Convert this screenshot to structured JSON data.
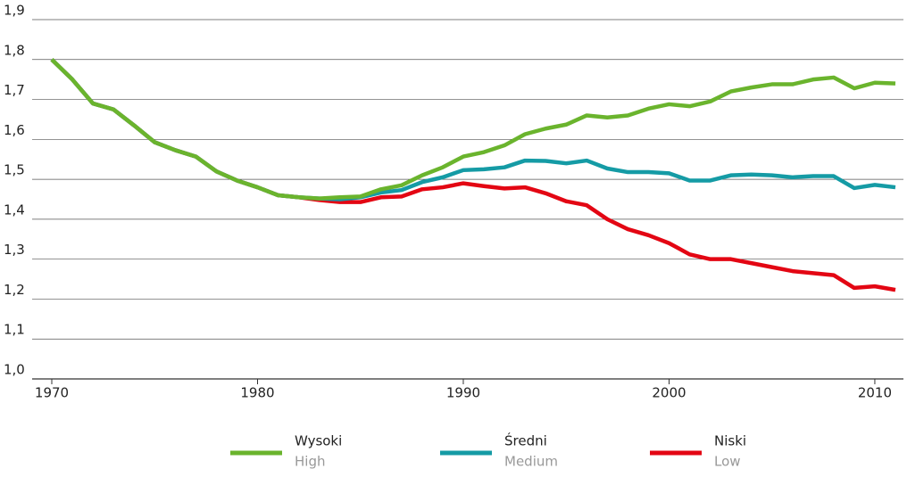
{
  "chart_data": {
    "type": "line",
    "x": [
      1970,
      1971,
      1972,
      1973,
      1974,
      1975,
      1976,
      1977,
      1978,
      1979,
      1980,
      1981,
      1982,
      1983,
      1984,
      1985,
      1986,
      1987,
      1988,
      1989,
      1990,
      1991,
      1992,
      1993,
      1994,
      1995,
      1996,
      1997,
      1998,
      1999,
      2000,
      2001,
      2002,
      2003,
      2004,
      2005,
      2006,
      2007,
      2008,
      2009,
      2010,
      2011
    ],
    "series": [
      {
        "name": "Wysoki",
        "name_en": "High",
        "color": "#6ab42d",
        "values": [
          1.8,
          1.75,
          1.69,
          1.675,
          1.635,
          1.593,
          1.573,
          1.557,
          1.52,
          1.497,
          1.48,
          1.46,
          1.455,
          1.452,
          1.455,
          1.457,
          1.475,
          1.485,
          1.51,
          1.53,
          1.557,
          1.568,
          1.585,
          1.613,
          1.627,
          1.637,
          1.66,
          1.655,
          1.66,
          1.677,
          1.688,
          1.683,
          1.695,
          1.72,
          1.73,
          1.738,
          1.738,
          1.75,
          1.755,
          1.728,
          1.742,
          1.74
        ]
      },
      {
        "name": "Średni",
        "name_en": "Medium",
        "color": "#159ba5",
        "values": [
          1.8,
          1.75,
          1.69,
          1.675,
          1.635,
          1.593,
          1.573,
          1.557,
          1.52,
          1.497,
          1.48,
          1.46,
          1.455,
          1.452,
          1.45,
          1.455,
          1.467,
          1.473,
          1.493,
          1.505,
          1.523,
          1.525,
          1.53,
          1.547,
          1.546,
          1.54,
          1.547,
          1.527,
          1.518,
          1.518,
          1.515,
          1.497,
          1.497,
          1.51,
          1.512,
          1.51,
          1.505,
          1.508,
          1.508,
          1.478,
          1.486,
          1.48
        ]
      },
      {
        "name": "Niski",
        "name_en": "Low",
        "color": "#e30613",
        "values": [
          1.8,
          1.75,
          1.69,
          1.675,
          1.635,
          1.593,
          1.573,
          1.557,
          1.52,
          1.497,
          1.48,
          1.46,
          1.455,
          1.448,
          1.443,
          1.443,
          1.455,
          1.457,
          1.475,
          1.48,
          1.49,
          1.483,
          1.477,
          1.48,
          1.465,
          1.445,
          1.435,
          1.4,
          1.375,
          1.36,
          1.34,
          1.312,
          1.3,
          1.3,
          1.29,
          1.28,
          1.27,
          1.265,
          1.26,
          1.228,
          1.232,
          1.223
        ]
      }
    ],
    "xlim": [
      1970,
      2011
    ],
    "xticks": [
      1970,
      1980,
      1990,
      2000,
      2010
    ],
    "ylim": [
      1.0,
      1.9
    ],
    "yticks": [
      {
        "value": 1.0,
        "label": "1,0"
      },
      {
        "value": 1.1,
        "label": "1,1"
      },
      {
        "value": 1.2,
        "label": "1,2"
      },
      {
        "value": 1.3,
        "label": "1,3"
      },
      {
        "value": 1.4,
        "label": "1,4"
      },
      {
        "value": 1.5,
        "label": "1,5"
      },
      {
        "value": 1.6,
        "label": "1,6"
      },
      {
        "value": 1.7,
        "label": "1,7"
      },
      {
        "value": 1.8,
        "label": "1,8"
      },
      {
        "value": 1.9,
        "label": "1,9"
      }
    ],
    "grid": true,
    "legend": "bottom"
  }
}
